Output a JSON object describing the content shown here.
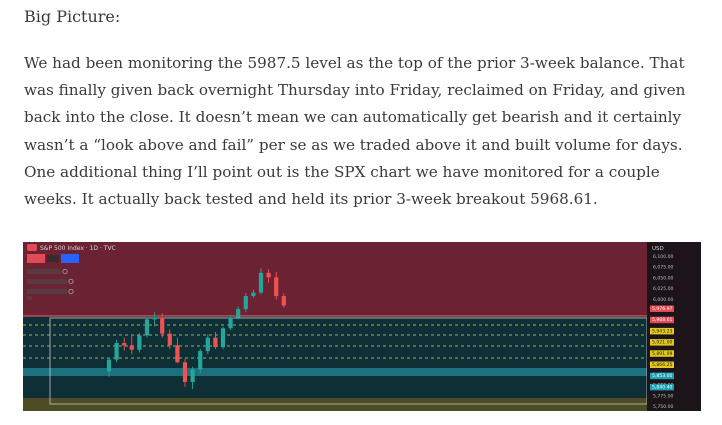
{
  "article": {
    "heading": "Big Picture:",
    "paragraph": "We had been monitoring the 5987.5 level as the top of the prior 3-week balance. That was finally given back overnight Thursday into Friday, reclaimed on Friday, and given back into the close. It doesn’t mean we can automatically get bearish and it certainly wasn’t a “look above and fail” per se as we traded above it and built volume for days. One additional thing I’ll point out is the SPX chart we have monitored for a couple weeks. It actually back tested and held its prior 3-week breakout 5968.61."
  },
  "chart": {
    "symbol_title": "S&P 500 Index · 1D · TVC",
    "currency": "USD",
    "colors": {
      "up": "#26a69a",
      "down": "#ef5350",
      "upper_zone": "#6b2334",
      "lower_zone": "#0f2f37",
      "teal_band": "#2aa6b8",
      "olive_zone": "#4e4c24",
      "price_line": "#f0626a"
    },
    "price_labels": [
      "6,100.00",
      "6,075.00",
      "6,050.00",
      "6,025.00",
      "6,000.00",
      "5,975.00",
      "5,950.00",
      "5,925.00",
      "5,900.00",
      "5,875.00",
      "5,850.00",
      "5,825.00",
      "5,800.00",
      "5,775.00",
      "5,750.00"
    ],
    "highlight_labels": [
      {
        "text": "5,976.97",
        "color": "#e24a55"
      },
      {
        "text": "5,968.61",
        "color": "#e24a55"
      },
      {
        "text": "5,943.23",
        "color": "#e2c81d"
      },
      {
        "text": "5,921.00",
        "color": "#e2c81d"
      },
      {
        "text": "5,891.09",
        "color": "#e2c81d"
      },
      {
        "text": "5,866.25",
        "color": "#e2c81d"
      },
      {
        "text": "5,853.00",
        "color": "#19a0b4"
      },
      {
        "text": "5,840.40",
        "color": "#19a0b4"
      }
    ]
  },
  "chart_data": {
    "type": "candlestick",
    "title": "S&P 500 Index · 1D · TVC",
    "ylim": [
      5750,
      6110
    ],
    "candles": [
      {
        "o": 5830,
        "h": 5860,
        "l": 5818,
        "c": 5856
      },
      {
        "o": 5856,
        "h": 5900,
        "l": 5850,
        "c": 5893
      },
      {
        "o": 5893,
        "h": 5905,
        "l": 5876,
        "c": 5888
      },
      {
        "o": 5888,
        "h": 5912,
        "l": 5868,
        "c": 5878
      },
      {
        "o": 5878,
        "h": 5915,
        "l": 5872,
        "c": 5910
      },
      {
        "o": 5910,
        "h": 5950,
        "l": 5905,
        "c": 5946
      },
      {
        "o": 5946,
        "h": 5962,
        "l": 5930,
        "c": 5950
      },
      {
        "o": 5950,
        "h": 5960,
        "l": 5905,
        "c": 5914
      },
      {
        "o": 5914,
        "h": 5924,
        "l": 5880,
        "c": 5888
      },
      {
        "o": 5888,
        "h": 5905,
        "l": 5848,
        "c": 5850
      },
      {
        "o": 5850,
        "h": 5858,
        "l": 5795,
        "c": 5806
      },
      {
        "o": 5806,
        "h": 5840,
        "l": 5790,
        "c": 5834
      },
      {
        "o": 5834,
        "h": 5880,
        "l": 5825,
        "c": 5875
      },
      {
        "o": 5875,
        "h": 5912,
        "l": 5868,
        "c": 5905
      },
      {
        "o": 5905,
        "h": 5918,
        "l": 5880,
        "c": 5884
      },
      {
        "o": 5884,
        "h": 5930,
        "l": 5880,
        "c": 5926
      },
      {
        "o": 5926,
        "h": 5955,
        "l": 5922,
        "c": 5950
      },
      {
        "o": 5950,
        "h": 5975,
        "l": 5946,
        "c": 5969
      },
      {
        "o": 5969,
        "h": 6005,
        "l": 5962,
        "c": 5998
      },
      {
        "o": 5998,
        "h": 6012,
        "l": 5994,
        "c": 6006
      },
      {
        "o": 6006,
        "h": 6060,
        "l": 6002,
        "c": 6050
      },
      {
        "o": 6050,
        "h": 6058,
        "l": 6028,
        "c": 6040
      },
      {
        "o": 6040,
        "h": 6052,
        "l": 5990,
        "c": 5998
      },
      {
        "o": 5998,
        "h": 6004,
        "l": 5972,
        "c": 5977
      }
    ]
  }
}
